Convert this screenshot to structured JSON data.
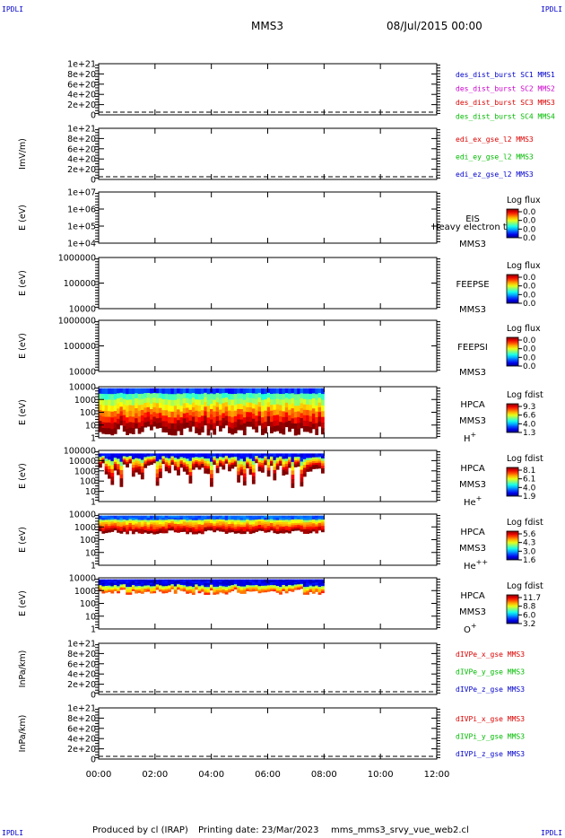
{
  "corners": {
    "tl": "IPDLI",
    "tr": "IPDLI",
    "bl": "IPDLI",
    "br": "IPDLI"
  },
  "header": {
    "spacecraft": "MMS3",
    "date": "08/Jul/2015 00:00"
  },
  "footer": {
    "producer": "Produced by cl (IRAP)",
    "printing": "Printing date: 23/Mar/2023",
    "script": "mms_mms3_srvy_vue_web2.cl"
  },
  "chart_data": {
    "type": "multi-panel time series",
    "x_range": [
      "00:00",
      "12:00"
    ],
    "x_ticks": [
      "00:00",
      "02:00",
      "04:00",
      "06:00",
      "08:00",
      "10:00",
      "12:00"
    ],
    "data_end": "08:00",
    "panels": [
      {
        "kind": "line",
        "ylabel": "",
        "yticks": [
          "1e+21",
          "8e+20",
          "6e+20",
          "4e+20",
          "2e+20",
          "0"
        ],
        "dashed_zero": true,
        "legend": [
          {
            "text": "des_dist_burst SC1 MMS1",
            "color": "#0000cc"
          },
          {
            "text": "des_dist_burst SC2 MMS2",
            "color": "#cc00cc"
          },
          {
            "text": "des_dist_burst SC3 MMS3",
            "color": "#dd0000"
          },
          {
            "text": "des_dist_burst SC4 MMS4",
            "color": "#00bb00"
          }
        ]
      },
      {
        "kind": "line",
        "ylabel": "ImV/m)",
        "yticks": [
          "1e+21",
          "8e+20",
          "6e+20",
          "4e+20",
          "2e+20",
          "0"
        ],
        "dashed_zero": true,
        "legend": [
          {
            "text": "edi_ex_gse_l2 MMS3",
            "color": "#dd0000"
          },
          {
            "text": "edi_ey_gse_l2 MMS3",
            "color": "#00bb00"
          },
          {
            "text": "edi_ez_gse_l2 MMS3",
            "color": "#0000cc"
          }
        ]
      },
      {
        "kind": "spec",
        "ylabel": "E (eV)",
        "yticks": [
          "1e+07",
          "1e+06",
          "1e+05",
          "1e+04"
        ],
        "labels": [
          "EIS",
          "MMS3"
        ],
        "overlay": "Heavy electron to",
        "cbar_title": "Log flux",
        "cbar_ticks": [
          "0.0",
          "0.0",
          "0.0",
          "0.0"
        ]
      },
      {
        "kind": "spec",
        "ylabel": "E (eV)",
        "yticks": [
          "1000000",
          "100000",
          "10000"
        ],
        "labels": [
          "FEEPSE",
          "MMS3"
        ],
        "cbar_title": "Log flux",
        "cbar_ticks": [
          "0.0",
          "0.0",
          "0.0",
          "0.0"
        ]
      },
      {
        "kind": "spec",
        "ylabel": "E (eV)",
        "yticks": [
          "1000000",
          "100000",
          "10000"
        ],
        "labels": [
          "FEEPSI",
          "MMS3"
        ],
        "cbar_title": "Log flux",
        "cbar_ticks": [
          "0.0",
          "0.0",
          "0.0",
          "0.0"
        ]
      },
      {
        "kind": "spec",
        "ylabel": "E (eV)",
        "yticks": [
          "10000",
          "1000",
          "100",
          "10",
          "1"
        ],
        "labels": [
          "HPCA",
          "MMS3"
        ],
        "species": "H",
        "species_sup": "+",
        "fill": "h",
        "cbar_title": "Log fdist",
        "cbar_ticks": [
          "9.3",
          "6.6",
          "4.0",
          "1.3"
        ]
      },
      {
        "kind": "spec",
        "ylabel": "E (eV)",
        "yticks": [
          "100000",
          "10000",
          "1000",
          "100",
          "10",
          "1"
        ],
        "labels": [
          "HPCA",
          "MMS3"
        ],
        "species": "He",
        "species_sup": "+",
        "fill": "he1",
        "cbar_title": "Log fdist",
        "cbar_ticks": [
          "8.1",
          "6.1",
          "4.0",
          "1.9"
        ]
      },
      {
        "kind": "spec",
        "ylabel": "E (eV)",
        "yticks": [
          "10000",
          "1000",
          "100",
          "10",
          "1"
        ],
        "labels": [
          "HPCA",
          "MMS3"
        ],
        "species": "He",
        "species_sup": "++",
        "fill": "he2",
        "cbar_title": "Log fdist",
        "cbar_ticks": [
          "5.6",
          "4.3",
          "3.0",
          "1.6"
        ]
      },
      {
        "kind": "spec",
        "ylabel": "E (eV)",
        "yticks": [
          "10000",
          "1000",
          "100",
          "10",
          "1"
        ],
        "labels": [
          "HPCA",
          "MMS3"
        ],
        "species": "O",
        "species_sup": "+",
        "fill": "o",
        "cbar_title": "Log fdist",
        "cbar_ticks": [
          "11.7",
          "8.8",
          "6.0",
          "3.2"
        ]
      },
      {
        "kind": "line",
        "ylabel": "InPa/km)",
        "yticks": [
          "1e+21",
          "8e+20",
          "6e+20",
          "4e+20",
          "2e+20",
          "0"
        ],
        "dashed_zero": true,
        "legend": [
          {
            "text": "dIVPe_x_gse MMS3",
            "color": "#dd0000"
          },
          {
            "text": "dIVPe_y_gse MMS3",
            "color": "#00bb00"
          },
          {
            "text": "dIVPe_z_gse MMS3",
            "color": "#0000cc"
          }
        ]
      },
      {
        "kind": "line",
        "ylabel": "InPa/km)",
        "yticks": [
          "1e+21",
          "8e+20",
          "6e+20",
          "4e+20",
          "2e+20",
          "0"
        ],
        "dashed_zero": true,
        "legend": [
          {
            "text": "dIVPi_x_gse MMS3",
            "color": "#dd0000"
          },
          {
            "text": "dIVPi_y_gse MMS3",
            "color": "#00bb00"
          },
          {
            "text": "dIVPi_z_gse MMS3",
            "color": "#0000cc"
          }
        ]
      }
    ]
  }
}
